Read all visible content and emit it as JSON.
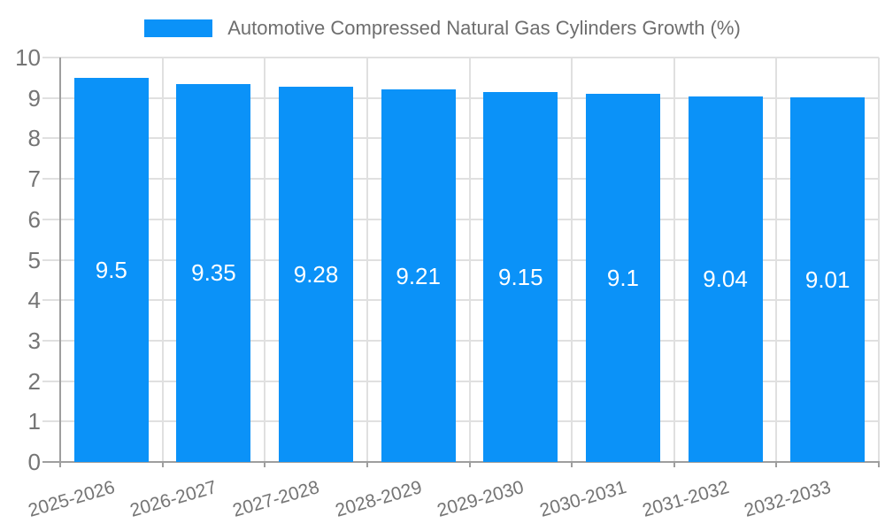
{
  "legend": {
    "label": "Automotive Compressed Natural Gas Cylinders Growth (%)"
  },
  "chart_data": {
    "type": "bar",
    "title": "Automotive Compressed Natural Gas Cylinders Growth (%)",
    "categories": [
      "2025-2026",
      "2026-2027",
      "2027-2028",
      "2028-2029",
      "2029-2030",
      "2030-2031",
      "2031-2032",
      "2032-2033"
    ],
    "values": [
      9.5,
      9.35,
      9.28,
      9.21,
      9.15,
      9.1,
      9.04,
      9.01
    ],
    "value_labels": [
      "9.5",
      "9.35",
      "9.28",
      "9.21",
      "9.15",
      "9.1",
      "9.04",
      "9.01"
    ],
    "xlabel": "",
    "ylabel": "",
    "ylim": [
      0,
      10
    ],
    "y_ticks": [
      "0",
      "1",
      "2",
      "3",
      "4",
      "5",
      "6",
      "7",
      "8",
      "9",
      "10"
    ],
    "grid": "on",
    "legend_position": "top",
    "colors": {
      "bar": "#0B92F8",
      "bar_value_text": "#FFFFFF",
      "axis_line": "#9E9E9E",
      "gridline": "#E0E0E0",
      "axis_text": "#757575",
      "legend_text": "#6E6E6E"
    }
  }
}
